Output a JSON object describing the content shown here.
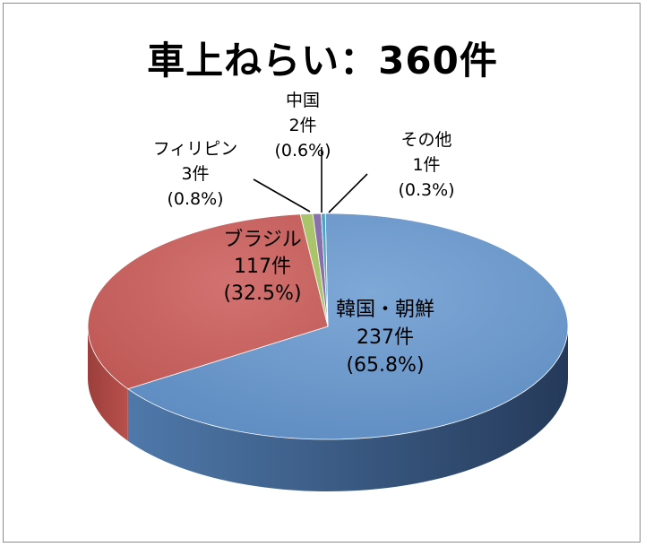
{
  "chart_data": {
    "type": "pie",
    "title": "車上ねらい：360件",
    "slices": [
      {
        "name": "韓国・朝鮮",
        "count_label": "237件",
        "pct_label": "(65.8%)",
        "value": 237,
        "percent": 65.8,
        "color": "#6b97c9"
      },
      {
        "name": "ブラジル",
        "count_label": "117件",
        "pct_label": "(32.5%)",
        "value": 117,
        "percent": 32.5,
        "color": "#c8625f"
      },
      {
        "name": "フィリピン",
        "count_label": "3件",
        "pct_label": "(0.8%)",
        "value": 3,
        "percent": 0.8,
        "color": "#a9c46a"
      },
      {
        "name": "中国",
        "count_label": "2件",
        "pct_label": "(0.6%)",
        "value": 2,
        "percent": 0.6,
        "color": "#8a70aa"
      },
      {
        "name": "その他",
        "count_label": "1件",
        "pct_label": "(0.3%)",
        "value": 1,
        "percent": 0.3,
        "color": "#4ba7c4"
      }
    ]
  }
}
